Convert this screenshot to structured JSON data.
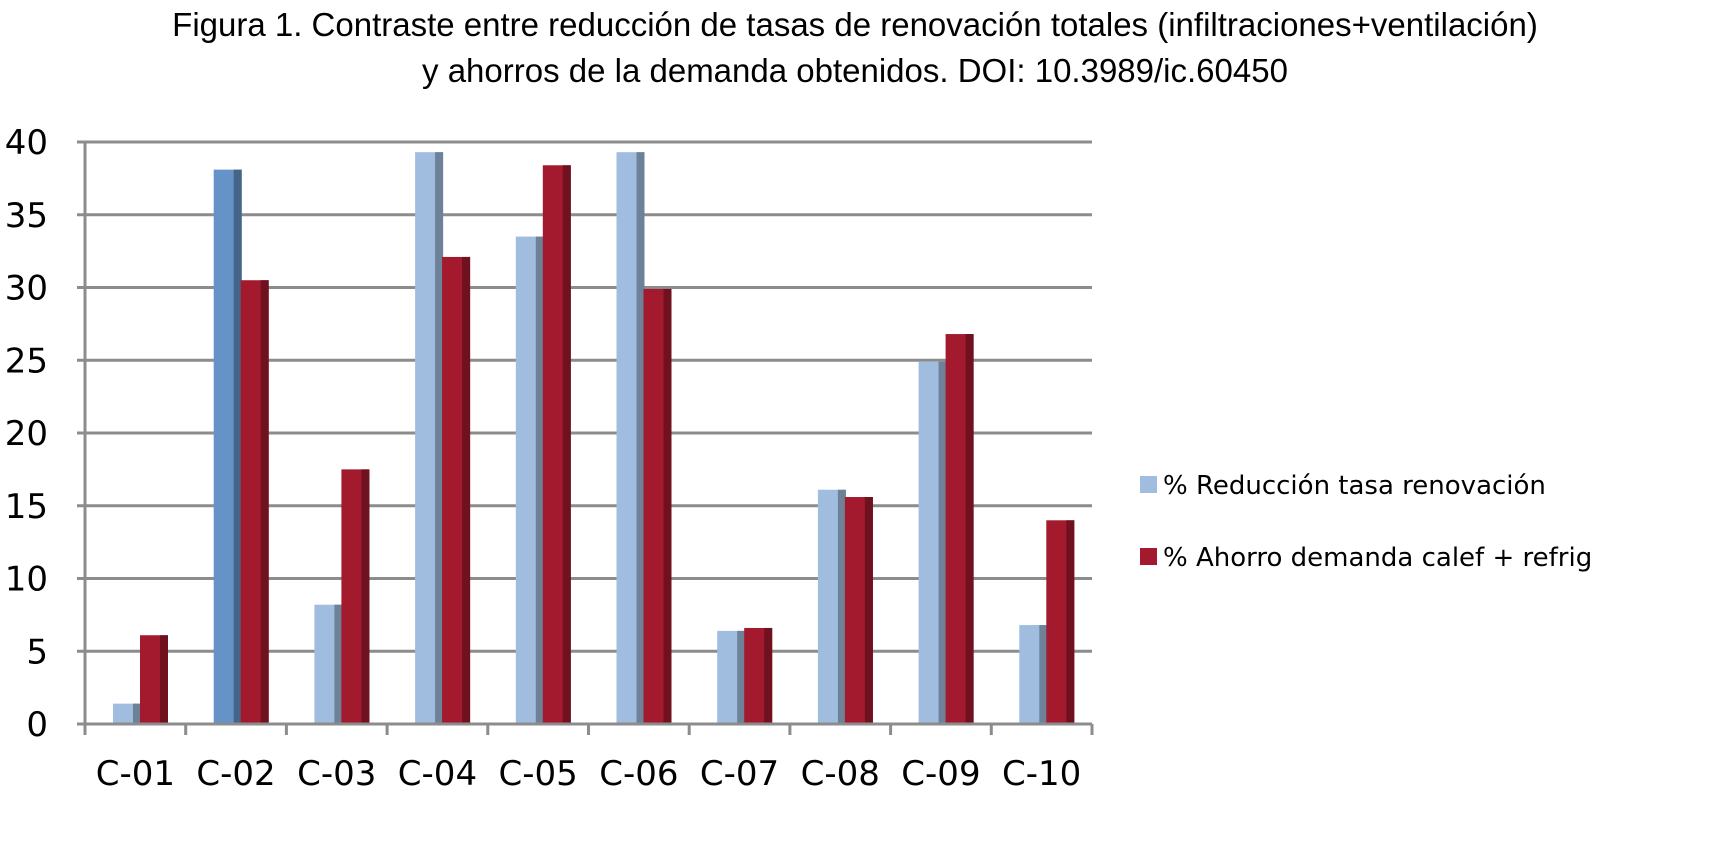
{
  "figure": {
    "title_line1": "Figura 1. Contraste entre reducción de tasas de renovación totales (infiltraciones+ventilación)",
    "title_line2": "y ahorros de la demanda obtenidos. DOI: 10.3989/ic.60450"
  },
  "chart_data": {
    "type": "bar",
    "categories": [
      "C-01",
      "C-02",
      "C-03",
      "C-04",
      "C-05",
      "C-06",
      "C-07",
      "C-08",
      "C-09",
      "C-10"
    ],
    "series": [
      {
        "name": "% Reducción tasa renovación",
        "color": "#a0bde0",
        "values": [
          1.4,
          38.1,
          8.2,
          39.3,
          33.5,
          39.3,
          6.4,
          16.1,
          24.9,
          6.8
        ]
      },
      {
        "name": "% Ahorro demanda calef + refrig",
        "color": "#a3192e",
        "values": [
          6.1,
          30.5,
          17.5,
          32.1,
          38.4,
          29.9,
          6.6,
          15.6,
          26.8,
          14.0
        ]
      }
    ],
    "highlight": {
      "series": 0,
      "index": 1,
      "color": "#6593c8"
    },
    "yticks": [
      0,
      5,
      10,
      15,
      20,
      25,
      30,
      35,
      40
    ],
    "ylim": [
      0,
      40
    ],
    "grid": true,
    "legend_position": "right",
    "xlabel": "",
    "ylabel": ""
  }
}
